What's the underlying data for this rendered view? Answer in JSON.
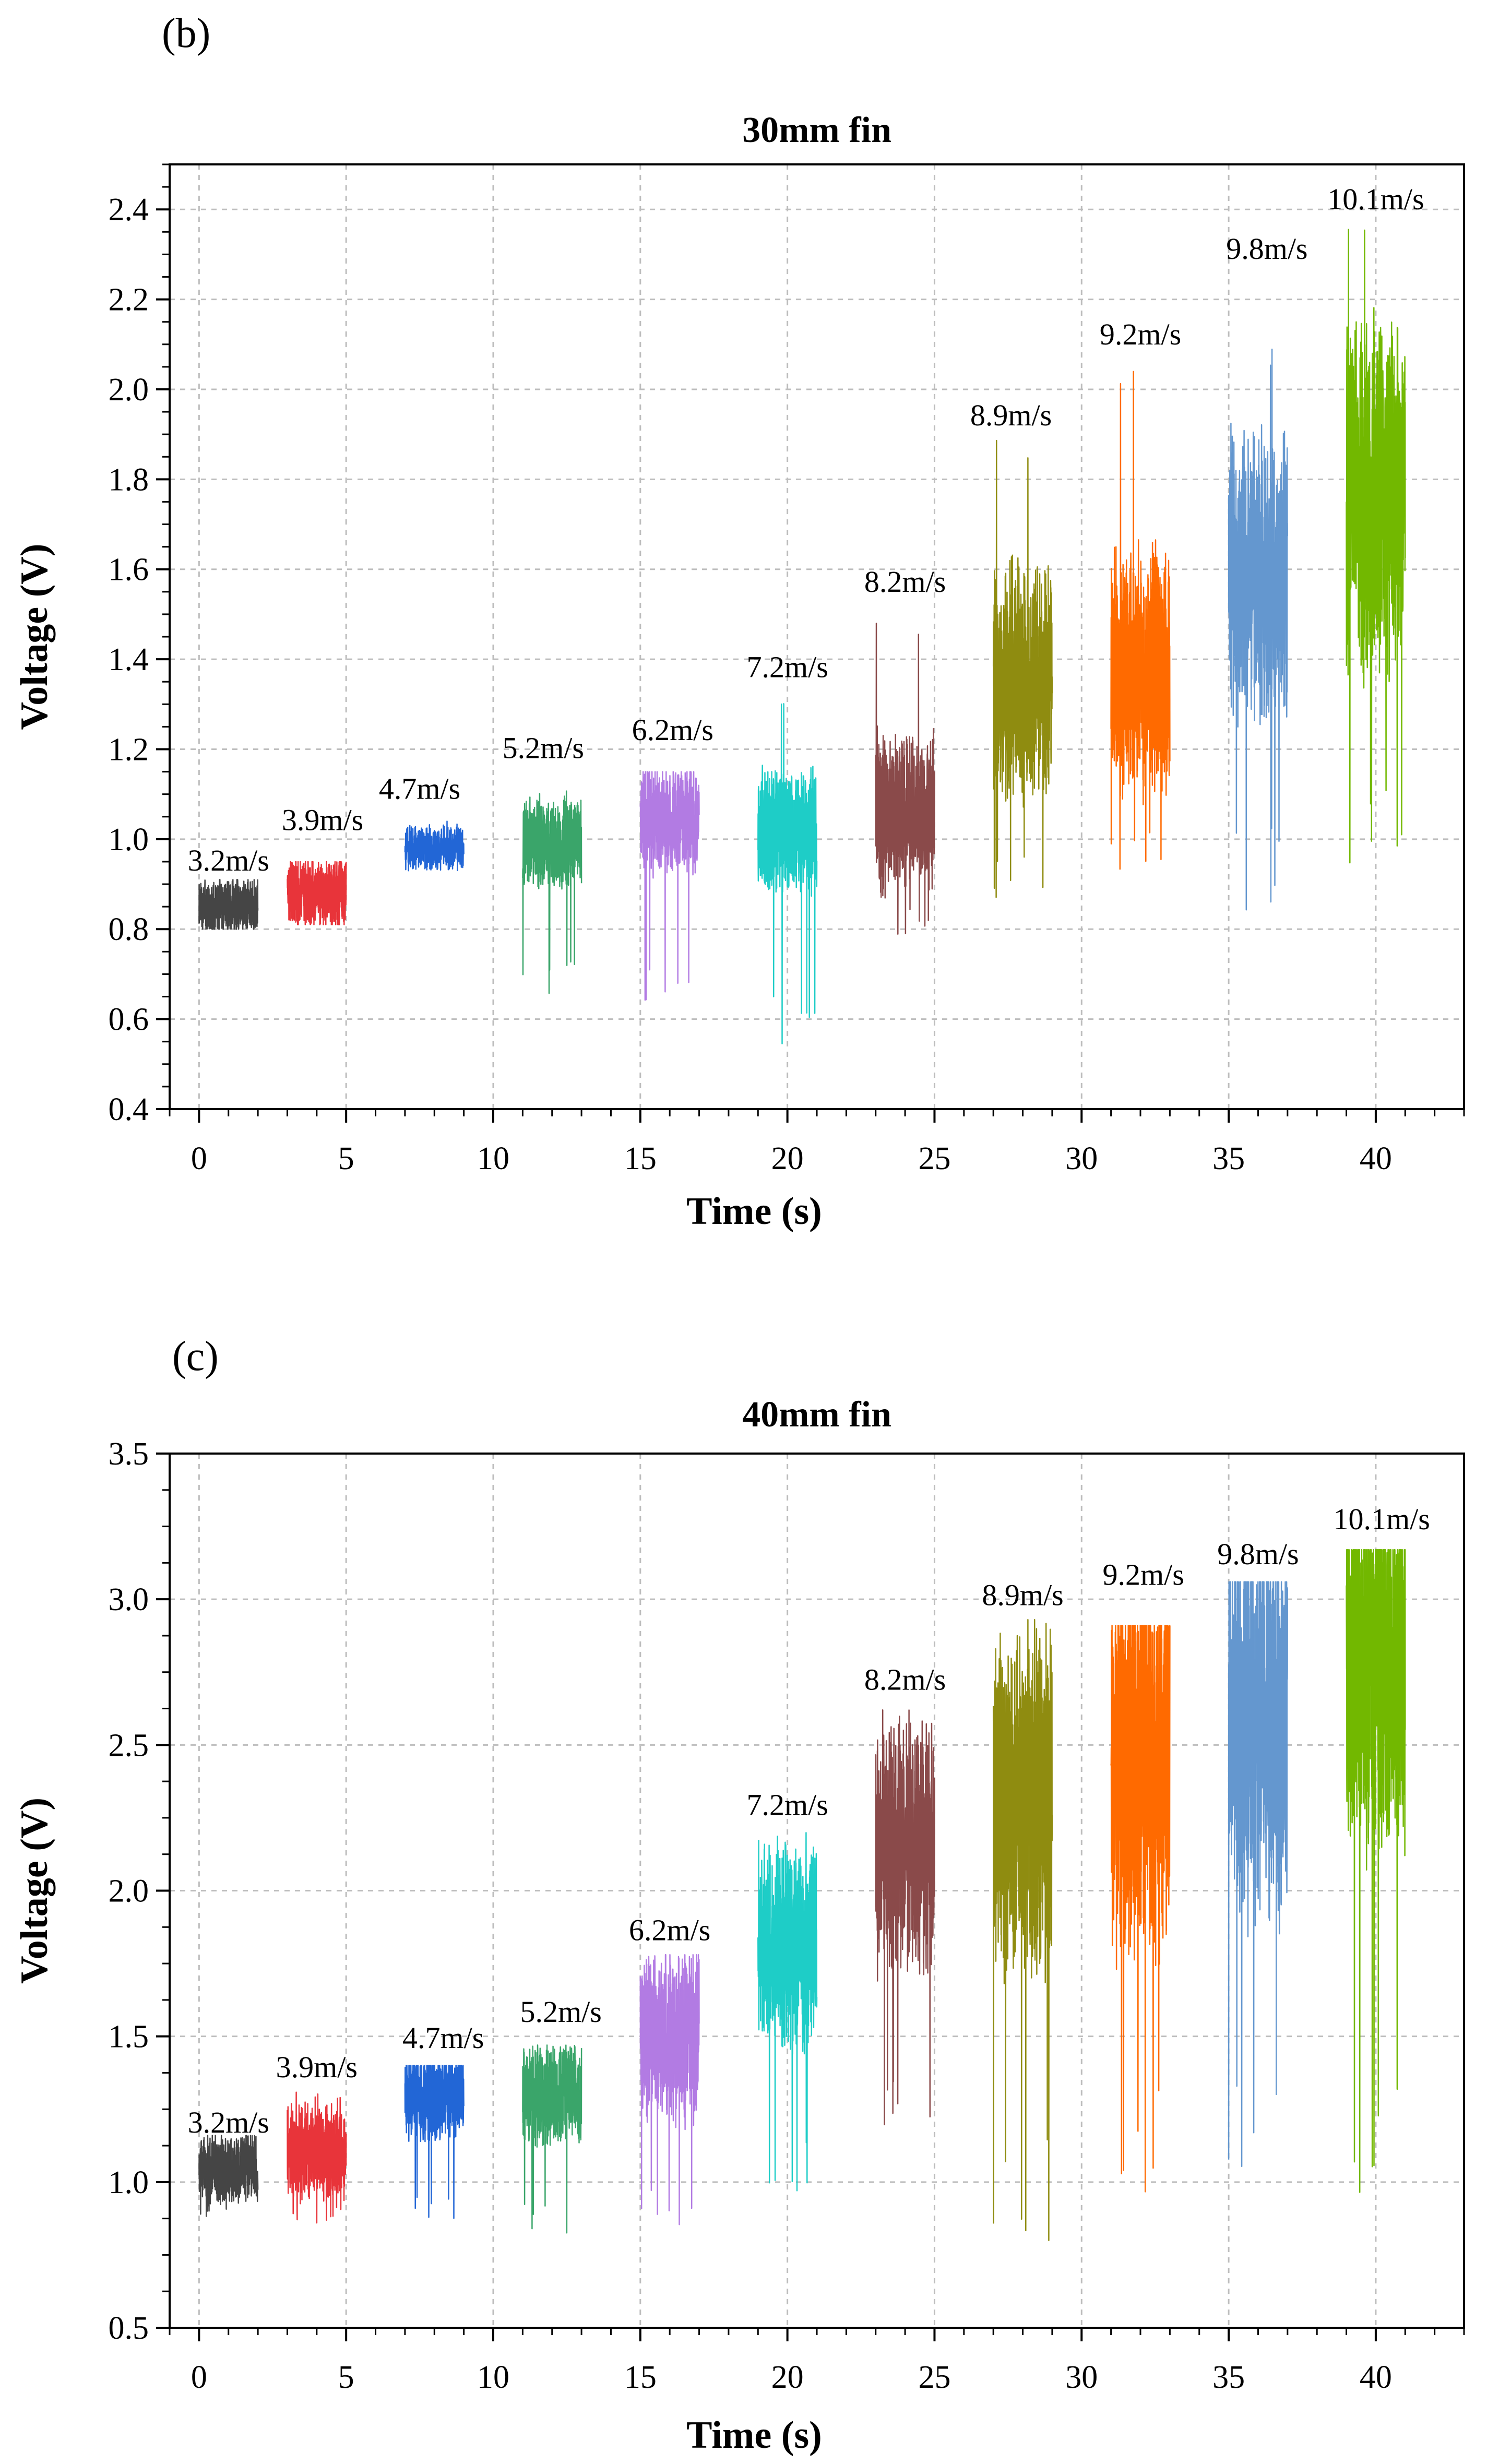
{
  "figure": {
    "panel_b_label": "(b)",
    "panel_c_label": "(c)"
  },
  "colors": [
    "#454545",
    "#e8343a",
    "#2266d6",
    "#3aa56a",
    "#b27be3",
    "#1ecdc7",
    "#8a4a4a",
    "#8f8c10",
    "#ff6a00",
    "#6497cf",
    "#72b800"
  ],
  "chart_data": [
    {
      "panel": "(b)",
      "type": "line",
      "title": "30mm fin",
      "xlabel": "Time (s)",
      "ylabel": "Voltage (V)",
      "xlim": [
        -1,
        43
      ],
      "ylim": [
        0.4,
        2.5
      ],
      "xticks": [
        0,
        5,
        10,
        15,
        20,
        25,
        30,
        35,
        40
      ],
      "xtick_labels": [
        "0",
        "5",
        "10",
        "15",
        "20",
        "25",
        "30",
        "35",
        "40"
      ],
      "yticks": [
        0.4,
        0.6,
        0.8,
        1.0,
        1.2,
        1.4,
        1.6,
        1.8,
        2.0,
        2.2,
        2.4
      ],
      "ytick_labels": [
        "0.4",
        "0.6",
        "0.8",
        "1.0",
        "1.2",
        "1.4",
        "1.6",
        "1.8",
        "2.0",
        "2.2",
        "2.4"
      ],
      "grid": true,
      "series": [
        {
          "name": "3.2m/s",
          "t_start": 0.0,
          "t_end": 2.0,
          "mean": 0.85,
          "amplitude": 0.03,
          "min": 0.8,
          "max": 0.91,
          "label_x": 1.0,
          "label_y": 0.93
        },
        {
          "name": "3.9m/s",
          "t_start": 3.0,
          "t_end": 5.0,
          "mean": 0.88,
          "amplitude": 0.04,
          "min": 0.81,
          "max": 0.95,
          "label_x": 4.2,
          "label_y": 1.02
        },
        {
          "name": "4.7m/s",
          "t_start": 7.0,
          "t_end": 9.0,
          "mean": 0.98,
          "amplitude": 0.025,
          "min": 0.93,
          "max": 1.04,
          "label_x": 7.5,
          "label_y": 1.09
        },
        {
          "name": "5.2m/s",
          "t_start": 11.0,
          "t_end": 13.0,
          "mean": 0.99,
          "amplitude": 0.05,
          "min": 0.64,
          "max": 1.11,
          "label_x": 11.7,
          "label_y": 1.18
        },
        {
          "name": "6.2m/s",
          "t_start": 15.0,
          "t_end": 17.0,
          "mean": 1.04,
          "amplitude": 0.06,
          "min": 0.63,
          "max": 1.15,
          "label_x": 16.1,
          "label_y": 1.22
        },
        {
          "name": "7.2m/s",
          "t_start": 19.0,
          "t_end": 21.0,
          "mean": 1.02,
          "amplitude": 0.07,
          "min": 0.53,
          "max": 1.33,
          "label_x": 20.0,
          "label_y": 1.36
        },
        {
          "name": "8.2m/s",
          "t_start": 23.0,
          "t_end": 25.0,
          "mean": 1.06,
          "amplitude": 0.09,
          "min": 0.78,
          "max": 1.52,
          "label_x": 24.0,
          "label_y": 1.55
        },
        {
          "name": "8.9m/s",
          "t_start": 27.0,
          "t_end": 29.0,
          "mean": 1.35,
          "amplitude": 0.13,
          "min": 0.86,
          "max": 1.9,
          "label_x": 27.6,
          "label_y": 1.92
        },
        {
          "name": "9.2m/s",
          "t_start": 31.0,
          "t_end": 33.0,
          "mean": 1.37,
          "amplitude": 0.14,
          "min": 0.9,
          "max": 2.06,
          "label_x": 32.0,
          "label_y": 2.1
        },
        {
          "name": "9.8m/s",
          "t_start": 35.0,
          "t_end": 37.0,
          "mean": 1.58,
          "amplitude": 0.16,
          "min": 0.84,
          "max": 2.11,
          "label_x": 36.3,
          "label_y": 2.29
        },
        {
          "name": "10.1m/s",
          "t_start": 39.0,
          "t_end": 41.0,
          "mean": 1.75,
          "amplitude": 0.2,
          "min": 0.92,
          "max": 2.36,
          "label_x": 40.0,
          "label_y": 2.4
        }
      ]
    },
    {
      "panel": "(c)",
      "type": "line",
      "title": "40mm fin",
      "xlabel": "Time (s)",
      "ylabel": "Voltage (V)",
      "xlim": [
        -1,
        43
      ],
      "ylim": [
        0.5,
        3.5
      ],
      "xticks": [
        0,
        5,
        10,
        15,
        20,
        25,
        30,
        35,
        40
      ],
      "xtick_labels": [
        "0",
        "5",
        "10",
        "15",
        "20",
        "25",
        "30",
        "35",
        "40"
      ],
      "yticks": [
        0.5,
        1.0,
        1.5,
        2.0,
        2.5,
        3.0,
        3.5
      ],
      "ytick_labels": [
        "0.5",
        "1.0",
        "1.5",
        "2.0",
        "2.5",
        "3.0",
        "3.5"
      ],
      "grid": true,
      "series": [
        {
          "name": "3.2m/s",
          "t_start": 0.0,
          "t_end": 2.0,
          "mean": 1.05,
          "amplitude": 0.06,
          "min": 0.88,
          "max": 1.16,
          "label_x": 1.0,
          "label_y": 1.17
        },
        {
          "name": "3.9m/s",
          "t_start": 3.0,
          "t_end": 5.0,
          "mean": 1.1,
          "amplitude": 0.09,
          "min": 0.84,
          "max": 1.33,
          "label_x": 4.0,
          "label_y": 1.36
        },
        {
          "name": "4.7m/s",
          "t_start": 7.0,
          "t_end": 9.0,
          "mean": 1.3,
          "amplitude": 0.08,
          "min": 0.85,
          "max": 1.4,
          "label_x": 8.3,
          "label_y": 1.46
        },
        {
          "name": "5.2m/s",
          "t_start": 11.0,
          "t_end": 13.0,
          "mean": 1.3,
          "amplitude": 0.09,
          "min": 0.82,
          "max": 1.47,
          "label_x": 12.3,
          "label_y": 1.55
        },
        {
          "name": "6.2m/s",
          "t_start": 15.0,
          "t_end": 17.0,
          "mean": 1.5,
          "amplitude": 0.15,
          "min": 0.81,
          "max": 1.78,
          "label_x": 16.0,
          "label_y": 1.83
        },
        {
          "name": "7.2m/s",
          "t_start": 19.0,
          "t_end": 21.0,
          "mean": 1.8,
          "amplitude": 0.18,
          "min": 0.95,
          "max": 2.22,
          "label_x": 20.0,
          "label_y": 2.26
        },
        {
          "name": "8.2m/s",
          "t_start": 23.0,
          "t_end": 25.0,
          "mean": 2.15,
          "amplitude": 0.22,
          "min": 1.12,
          "max": 2.62,
          "label_x": 24.0,
          "label_y": 2.69
        },
        {
          "name": "8.9m/s",
          "t_start": 27.0,
          "t_end": 29.0,
          "mean": 2.3,
          "amplitude": 0.3,
          "min": 0.78,
          "max": 2.93,
          "label_x": 28.0,
          "label_y": 2.98
        },
        {
          "name": "9.2m/s",
          "t_start": 31.0,
          "t_end": 33.0,
          "mean": 2.45,
          "amplitude": 0.35,
          "min": 0.95,
          "max": 2.91,
          "label_x": 32.1,
          "label_y": 3.05
        },
        {
          "name": "9.8m/s",
          "t_start": 35.0,
          "t_end": 37.0,
          "mean": 2.6,
          "amplitude": 0.35,
          "min": 1.05,
          "max": 3.06,
          "label_x": 36.0,
          "label_y": 3.12
        },
        {
          "name": "10.1m/s",
          "t_start": 39.0,
          "t_end": 41.0,
          "mean": 2.75,
          "amplitude": 0.35,
          "min": 0.9,
          "max": 3.17,
          "label_x": 40.2,
          "label_y": 3.24
        }
      ]
    }
  ]
}
